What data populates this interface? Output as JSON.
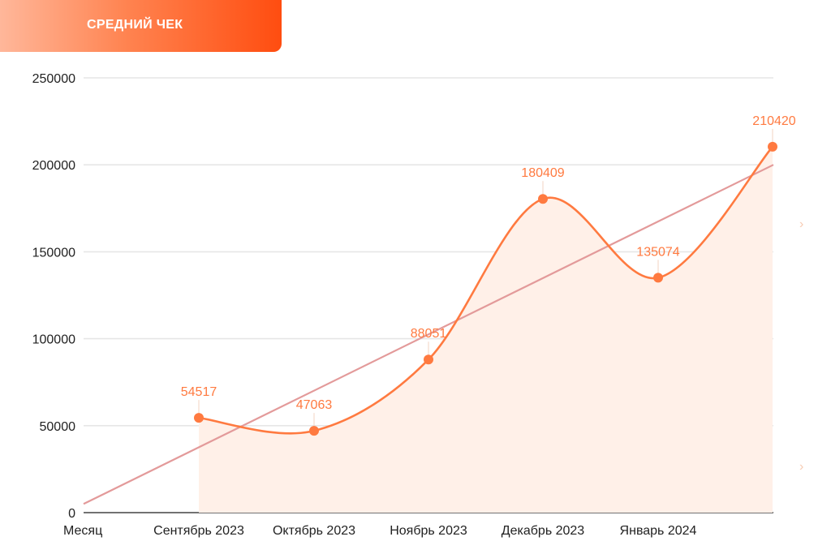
{
  "header": {
    "title": "СРЕДНИЙ ЧЕК"
  },
  "colors": {
    "line": "#ff7a40",
    "area": "#fff0e8",
    "trend": "#e39a9a",
    "grid": "#e6e6e6",
    "header_from": "#ffb79a",
    "header_to": "#ff4d10"
  },
  "icons": {
    "next": "chevron-right-icon"
  },
  "chart_data": {
    "type": "line",
    "title": "СРЕДНИЙ ЧЕК",
    "xlabel": "Месяц",
    "ylabel": "",
    "ylim": [
      0,
      250000
    ],
    "yticks": [
      0,
      50000,
      100000,
      150000,
      200000,
      250000
    ],
    "ytick_labels": [
      "0",
      "50000",
      "100000",
      "150000",
      "200000",
      "250000"
    ],
    "categories": [
      "Сентябрь 2023",
      "Октябрь 2023",
      "Ноябрь 2023",
      "Декабрь 2023",
      "Январь 2024",
      ""
    ],
    "series": [
      {
        "values": [
          54517,
          47063,
          88051,
          180409,
          135074,
          210420
        ],
        "labels": [
          "54517",
          "47063",
          "88051",
          "180409",
          "135074",
          "210420"
        ]
      }
    ],
    "trendline": {
      "start": 5000,
      "end": 200000
    },
    "grid": true,
    "smooth": true,
    "area_fill": true
  }
}
